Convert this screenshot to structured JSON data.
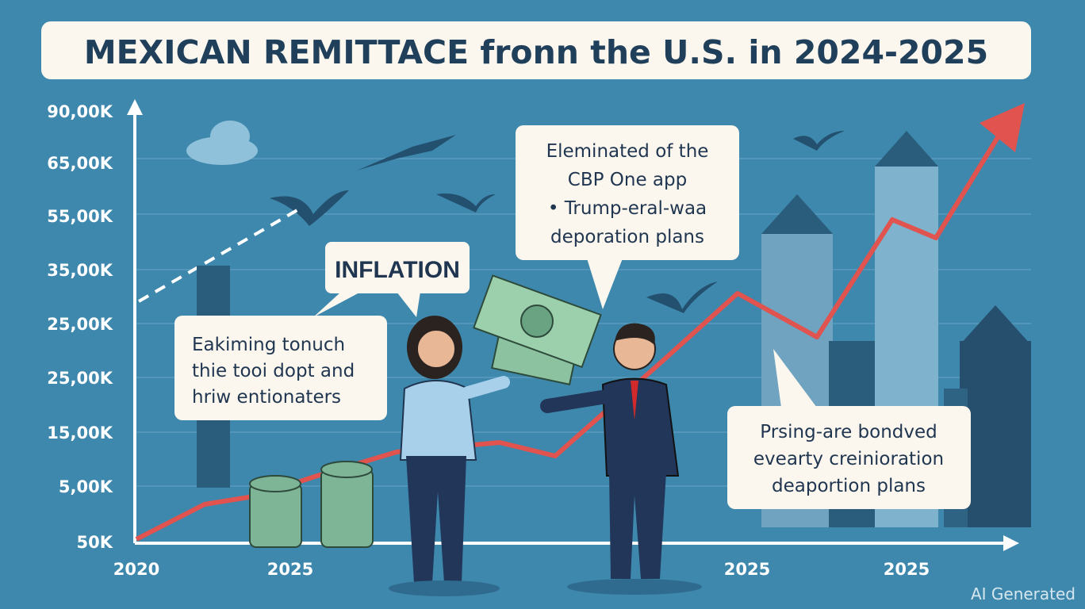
{
  "title": "MEXICAN REMITTACE fronn the U.S. in 2024-2025",
  "y_axis_labels": [
    "90,00K",
    "65,00K",
    "55,00K",
    "35,00K",
    "25,00K",
    "25,00K",
    "15,00K",
    "5,00K",
    "50K"
  ],
  "x_axis_labels": [
    "2020",
    "2025",
    "2025",
    "2025"
  ],
  "callouts": {
    "inflation": "INFLATION",
    "left": [
      "Eakiming tonuch",
      "thie tooi dopt and",
      "hriw entionaters"
    ],
    "middle": [
      "Eleminated of the",
      "CBP One app",
      "• Trump-eral-waa",
      "deporation plans"
    ],
    "right": [
      "Prsing-are bondved",
      "evearty creinioration",
      "deaportion plans"
    ]
  },
  "watermark": "AI Generated"
}
